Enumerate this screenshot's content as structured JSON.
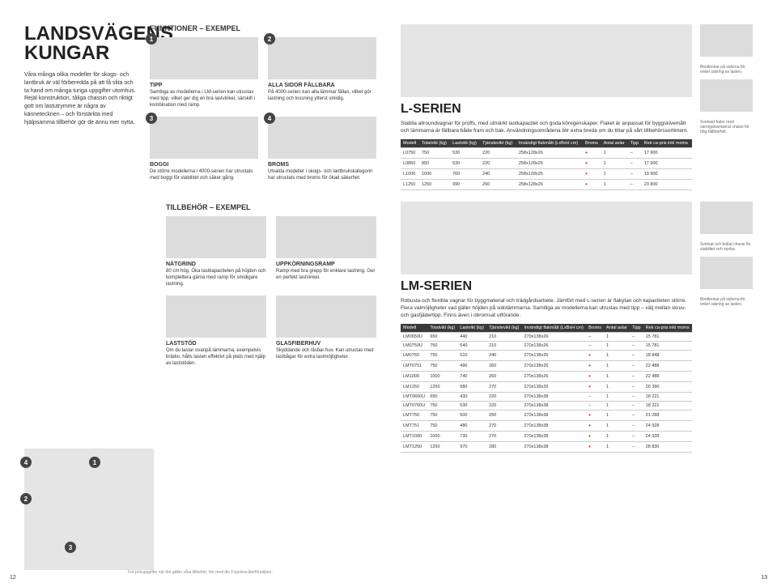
{
  "headline": "LANDSVÄGENS KUNGAR",
  "intro": "Våra många olika modeller för skogs- och lantbruk är väl förberedda på att få slita och ta hand om många tunga uppgifter utomhus. Rejäl konstruktion, tåliga chassin och riktigt gott om lastutrymme är några av kännetecknen – och förstärkta med hjälpsamma tillbehör gör de ännu mer nytta.",
  "funktioner_title": "FUNKTIONER – EXEMPEL",
  "tillbehor_title": "TILLBEHÖR – EXEMPEL",
  "features": [
    {
      "n": "1",
      "title": "TIPP",
      "text": "Samtliga av modellerna i LM-serien kan utrustas med tipp, vilket ger dig en bra lastvinkel, särskilt i kombination med ramp."
    },
    {
      "n": "2",
      "title": "ALLA SIDOR FÄLLBARA",
      "text": "På 4000-serien kan alla lämmar fällas, vilket gör lastning och lossning ytterst smidig."
    },
    {
      "n": "3",
      "title": "BOGGI",
      "text": "De större modellerna i 4000-serien har utrustats med boggi för stabilitet och säker gång."
    },
    {
      "n": "4",
      "title": "BROMS",
      "text": "Utvalda modeller i skogs- och lantbrukskategorin har utrustats med broms för ökad säkerhet."
    }
  ],
  "accessories": [
    {
      "title": "NÄTGRIND",
      "text": "80 cm hög. Öka lastkapaciteten på höjden och komplettera gärna med ramp för smidigare lastning."
    },
    {
      "title": "UPPKÖRNINGSRAMP",
      "text": "Ramp med bra grepp för enklare lastning. Ger en perfekt lastvinkel."
    },
    {
      "title": "LASTSTÖD",
      "text": "Om du lastar ovanpå lämmarna, exempelvis brädor, hålls lasten effektivt på plats med hjälp av laststöden."
    },
    {
      "title": "GLASFIBERHUV",
      "text": "Skyddande och låsbar huv. Kan utrustas med lastbågar för extra lastmöjligheter."
    }
  ],
  "l_series": {
    "title": "L-SERIEN",
    "desc": "Stabila allroundvagnar för proffs, med utmärkt lastkapacitet och goda köregenskaper. Flaket är anpassat för byggskivemått och lämmarna är fällbara både fram och bak. Användningsområdena blir extra breda om du tittar på vårt tillbehörssortiment.",
    "columns": [
      "Modell",
      "Totalvikt (kg)",
      "Lastvikt (kg)",
      "Tjänstevikt (kg)",
      "Invändigt flakmått (LxBxH cm)",
      "Broms",
      "Antal axlar",
      "Tipp",
      "Rek ca-pris inkl moms"
    ],
    "rows": [
      [
        "L0750",
        "750",
        "530",
        "220",
        "258x128x26",
        "•",
        "1",
        "–",
        "17 900"
      ],
      [
        "L0850",
        "850",
        "630",
        "220",
        "258x128x26",
        "•",
        "1",
        "–",
        "17 900"
      ],
      [
        "L1000",
        "1000",
        "760",
        "240",
        "258x128x26",
        "•",
        "1",
        "–",
        "19 900"
      ],
      [
        "L1250",
        "1250",
        "990",
        "260",
        "258x128x26",
        "•",
        "1",
        "–",
        "23 800"
      ]
    ],
    "side1": "Bindkrokar på sidorna för enkel säkring av lasten.",
    "side2": "Svetsad fraler med varmgalvaniserat chassi för hög hållbarhet."
  },
  "lm_series": {
    "title": "LM-SERIEN",
    "desc": "Robusta och flexibla vagnar för byggmaterial och trädgårdsarbete. Jämfört med L-serien är flakytan och kapaciteten större. Flera valmöjligheter vad gäller höjden på sidolämmarna. Samtliga av modellerna kan utrustas med tipp – välj mellan skruv- och gasfjädertipp. Finns även i obromsat utförande.",
    "columns": [
      "Modell",
      "Totalvikt (kg)",
      "Lastvikt (kg)",
      "Tjänstevikt (kg)",
      "Invändigt flakmått (LxBxH cm)",
      "Broms",
      "Antal axlar",
      "Tipp",
      "Rek ca-pris inkl moms"
    ],
    "rows": [
      [
        "LM0650U",
        "650",
        "440",
        "210",
        "270x138x26",
        "–",
        "1",
        "–",
        "15 781"
      ],
      [
        "LM0750U",
        "750",
        "540",
        "210",
        "270x138x26",
        "–",
        "1",
        "–",
        "15 781"
      ],
      [
        "LM0750",
        "750",
        "510",
        "240",
        "270x138x26",
        "•",
        "1",
        "–",
        "18 848"
      ],
      [
        "LMT0751",
        "750",
        "490",
        "260",
        "270x138x26",
        "•",
        "1",
        "–",
        "22 488"
      ],
      [
        "LM1000",
        "1000",
        "740",
        "260",
        "270x138x26",
        "•",
        "1",
        "–",
        "22 488"
      ],
      [
        "LM1250",
        "1250",
        "980",
        "270",
        "270x138x26",
        "•",
        "1",
        "–",
        "26 390"
      ],
      [
        "LMT0650U",
        "650",
        "430",
        "220",
        "270x138x38",
        "–",
        "1",
        "–",
        "18 221"
      ],
      [
        "LMT0750U",
        "750",
        "530",
        "220",
        "270x138x38",
        "–",
        "1",
        "–",
        "18 221"
      ],
      [
        "LMT750",
        "750",
        "500",
        "250",
        "270x138x38",
        "•",
        "1",
        "–",
        "21 288"
      ],
      [
        "LMT751",
        "750",
        "480",
        "270",
        "270x138x38",
        "•",
        "1",
        "–",
        "24 928"
      ],
      [
        "LMT1000",
        "1000",
        "730",
        "270",
        "270x138x38",
        "•",
        "1",
        "–",
        "24 928"
      ],
      [
        "LMT1250",
        "1250",
        "970",
        "280",
        "270x138x38",
        "•",
        "1",
        "–",
        "28 830"
      ]
    ],
    "side1": "Svetsat och bultat chassi för stabilitet och styrka.",
    "side2": "Bindkrokar på sidorna för enkel säkring av lasten."
  },
  "footer": "För prisuppgifter när det gäller våra tillbehör, hör med din Fogelsta-återförsäljare.",
  "page_left": "12",
  "page_right": "13"
}
